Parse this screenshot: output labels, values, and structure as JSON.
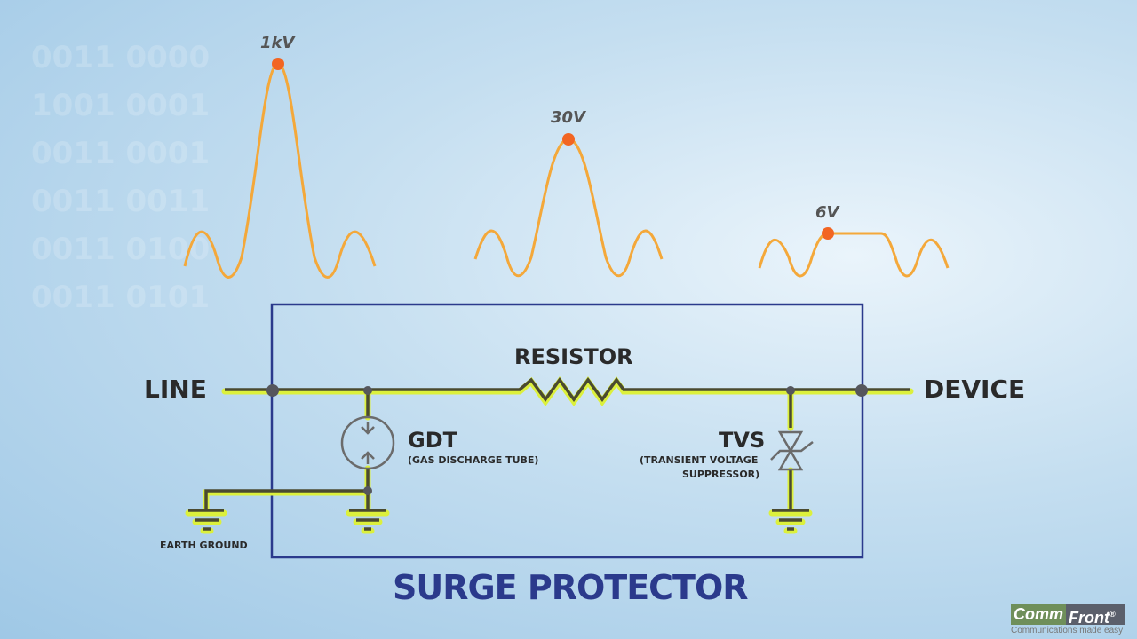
{
  "background_binary": [
    "0011 0000",
    "1001 0001",
    "0011 0001",
    "0011 0011",
    "0011 0100",
    "0011 0101"
  ],
  "waveforms": [
    {
      "peak_label": "1kV"
    },
    {
      "peak_label": "30V"
    },
    {
      "peak_label": "6V",
      "clipped": true
    }
  ],
  "labels": {
    "line": "LINE",
    "device": "DEVICE",
    "resistor": "RESISTOR",
    "gdt": "GDT",
    "gdt_full": "(GAS DISCHARGE TUBE)",
    "tvs": "TVS",
    "tvs_full_1": "(TRANSIENT VOLTAGE",
    "tvs_full_2": "SUPPRESSOR)",
    "earth_ground": "EARTH GROUND",
    "title": "SURGE PROTECTOR"
  },
  "logo": {
    "part1": "Comm",
    "part2": "Front",
    "registered": "®",
    "tagline": "Communications made easy"
  },
  "colors": {
    "wave": "#f4a83a",
    "peak_dot": "#f26522",
    "wire_glow": "#dcf03c",
    "wire": "#4a4a30",
    "box": "#2b3a8c",
    "title": "#2b3a8c",
    "node": "#55565c"
  }
}
